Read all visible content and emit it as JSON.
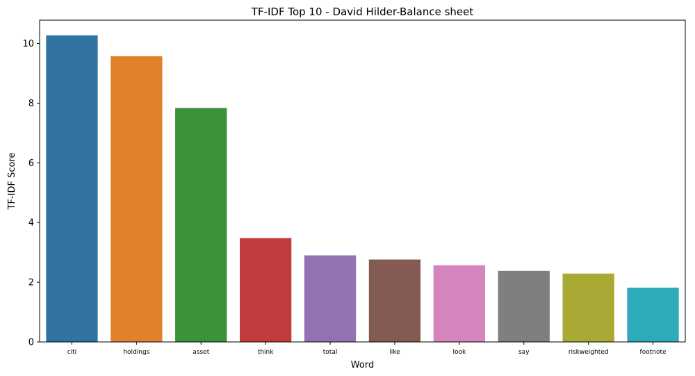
{
  "chart_data": {
    "type": "bar",
    "title": "TF-IDF Top 10 - David Hilder-Balance sheet",
    "xlabel": "Word",
    "ylabel": "TF-IDF Score",
    "categories": [
      "citi",
      "holdings",
      "asset",
      "think",
      "total",
      "like",
      "look",
      "say",
      "riskweighted",
      "footnote"
    ],
    "values": [
      10.27,
      9.57,
      7.84,
      3.48,
      2.9,
      2.76,
      2.57,
      2.38,
      2.29,
      1.82
    ],
    "colors": [
      "#3274a1",
      "#e1812c",
      "#3a923a",
      "#c03d3e",
      "#9372b2",
      "#845b53",
      "#d684bd",
      "#7f7f7f",
      "#a9aa35",
      "#2eabb8"
    ],
    "yticks": [
      0,
      2,
      4,
      6,
      8,
      10
    ],
    "ylim": [
      0,
      10.78
    ],
    "grid": false,
    "legend": "none"
  }
}
